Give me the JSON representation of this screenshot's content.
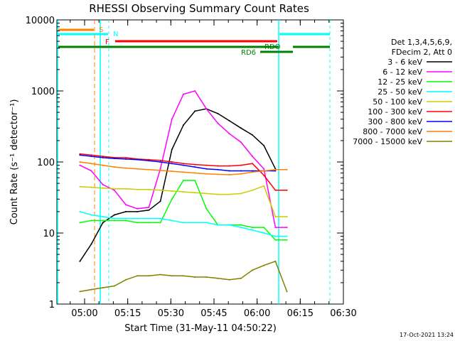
{
  "chart_data": {
    "type": "line",
    "title": "RHESSI Observing Summary Count Rates",
    "xlabel": "Start Time (31-May-11 04:50:22)",
    "ylabel": "Count Rate (s⁻¹ detector⁻¹)",
    "yscale": "log",
    "xlim": [
      "04:50:22",
      "06:30"
    ],
    "ylim": [
      1,
      10000
    ],
    "x_ticks": [
      "05:00",
      "05:15",
      "05:30",
      "05:45",
      "06:00",
      "06:15",
      "06:30"
    ],
    "y_ticks": [
      "1",
      "10",
      "100",
      "1000",
      "10000"
    ],
    "x_minutes": [
      8,
      12,
      16,
      20,
      24,
      28,
      32,
      36,
      40,
      44,
      48,
      52,
      56,
      60,
      64,
      68,
      72,
      76,
      80,
      84
    ],
    "legend_header": [
      "Det 1,3,4,5,6,9,",
      "FDecim 2, Att 0"
    ],
    "legend_position": "right",
    "series": [
      {
        "name": "3 - 6 keV",
        "color": "#000000",
        "values": [
          4,
          7,
          14,
          18,
          20,
          20,
          21,
          28,
          150,
          330,
          520,
          560,
          480,
          380,
          300,
          240,
          170,
          80,
          null,
          null
        ]
      },
      {
        "name": "6 - 12 keV",
        "color": "#ff00ff",
        "values": [
          90,
          75,
          48,
          40,
          25,
          22,
          23,
          80,
          400,
          900,
          1000,
          560,
          350,
          250,
          190,
          120,
          80,
          12,
          12,
          null
        ]
      },
      {
        "name": "12 - 25 keV",
        "color": "#00ff00",
        "values": [
          14,
          15,
          15,
          15,
          15,
          14,
          14,
          14,
          30,
          55,
          55,
          22,
          13,
          13,
          13,
          12,
          12,
          8,
          8,
          null
        ]
      },
      {
        "name": "25 - 50 keV",
        "color": "#00ffff",
        "values": [
          20,
          18,
          17,
          16,
          16,
          16,
          16,
          16,
          15,
          14,
          14,
          14,
          13,
          13,
          12,
          11,
          10,
          9,
          9,
          null
        ]
      },
      {
        "name": "50 - 100 keV",
        "color": "#cccc00",
        "values": [
          45,
          44,
          43,
          42,
          42,
          41,
          41,
          40,
          39,
          38,
          37,
          36,
          35,
          35,
          36,
          40,
          46,
          17,
          17,
          null
        ]
      },
      {
        "name": "100 - 300 keV",
        "color": "#ff0000",
        "values": [
          130,
          125,
          120,
          115,
          115,
          110,
          108,
          105,
          100,
          95,
          92,
          90,
          88,
          88,
          90,
          95,
          65,
          40,
          40,
          null
        ]
      },
      {
        "name": "300 - 800 keV",
        "color": "#0000ff",
        "values": [
          125,
          120,
          115,
          112,
          110,
          108,
          104,
          100,
          95,
          90,
          85,
          80,
          78,
          75,
          75,
          75,
          75,
          75,
          null,
          null
        ]
      },
      {
        "name": "800 - 7000 keV",
        "color": "#ff8000",
        "values": [
          100,
          95,
          90,
          85,
          82,
          80,
          78,
          76,
          74,
          72,
          70,
          68,
          67,
          66,
          68,
          72,
          75,
          78,
          78,
          null
        ]
      },
      {
        "name": "7000 - 15000 keV",
        "color": "#808000",
        "values": [
          1.5,
          1.6,
          1.7,
          1.8,
          2.2,
          2.5,
          2.5,
          2.6,
          2.5,
          2.5,
          2.4,
          2.4,
          2.3,
          2.2,
          2.3,
          3,
          3.5,
          4,
          1.5,
          null
        ]
      }
    ],
    "status_bars": [
      {
        "label": "S",
        "color": "#ff8000"
      },
      {
        "label": "N",
        "color": "#00ffff"
      },
      {
        "label": "F",
        "color": "#ff0000"
      },
      {
        "label": "RDO",
        "color": "#008000"
      },
      {
        "label": "RD6",
        "color": "#008000"
      }
    ]
  },
  "footer": {
    "timestamp": "17-Oct-2021 13:24"
  }
}
